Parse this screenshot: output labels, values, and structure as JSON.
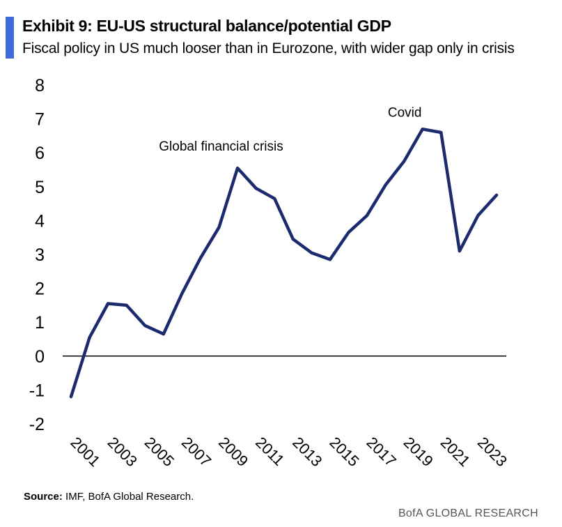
{
  "header": {
    "title": "Exhibit 9: EU-US structural balance/potential GDP",
    "subtitle": "Fiscal policy in US much looser than in Eurozone, with wider gap only in crisis"
  },
  "footer": {
    "source_label": "Source:",
    "source_text": "IMF, BofA Global Research.",
    "brand": "BofA GLOBAL RESEARCH"
  },
  "colors": {
    "accent": "#3e6bd8",
    "line": "#1c2b6e",
    "zero_line": "#000000"
  },
  "chart_data": {
    "type": "line",
    "x": [
      2001,
      2002,
      2003,
      2004,
      2005,
      2006,
      2007,
      2008,
      2009,
      2010,
      2011,
      2012,
      2013,
      2014,
      2015,
      2016,
      2017,
      2018,
      2019,
      2020,
      2021,
      2022,
      2023,
      2024
    ],
    "series": [
      {
        "values": [
          -1.2,
          0.55,
          1.55,
          1.5,
          0.9,
          0.65,
          1.85,
          2.9,
          3.8,
          5.55,
          4.95,
          4.65,
          3.45,
          3.05,
          2.85,
          3.65,
          4.15,
          5.05,
          5.75,
          6.7,
          6.6,
          3.1,
          4.15,
          4.75
        ]
      }
    ],
    "x_tick_labels": [
      "2001",
      "2003",
      "2005",
      "2007",
      "2009",
      "2011",
      "2013",
      "2015",
      "2017",
      "2019",
      "2021",
      "2023"
    ],
    "y_tick_labels": [
      "8",
      "7",
      "6",
      "5",
      "4",
      "3",
      "2",
      "1",
      "0",
      "-1",
      "-2"
    ],
    "ylim": [
      -2,
      8
    ],
    "annotations": [
      {
        "text": "Global financial crisis",
        "x": 2009,
        "y": 6.0
      },
      {
        "text": "Covid",
        "x": 2019,
        "y": 7.0
      }
    ],
    "grid": false,
    "legend": "none"
  }
}
